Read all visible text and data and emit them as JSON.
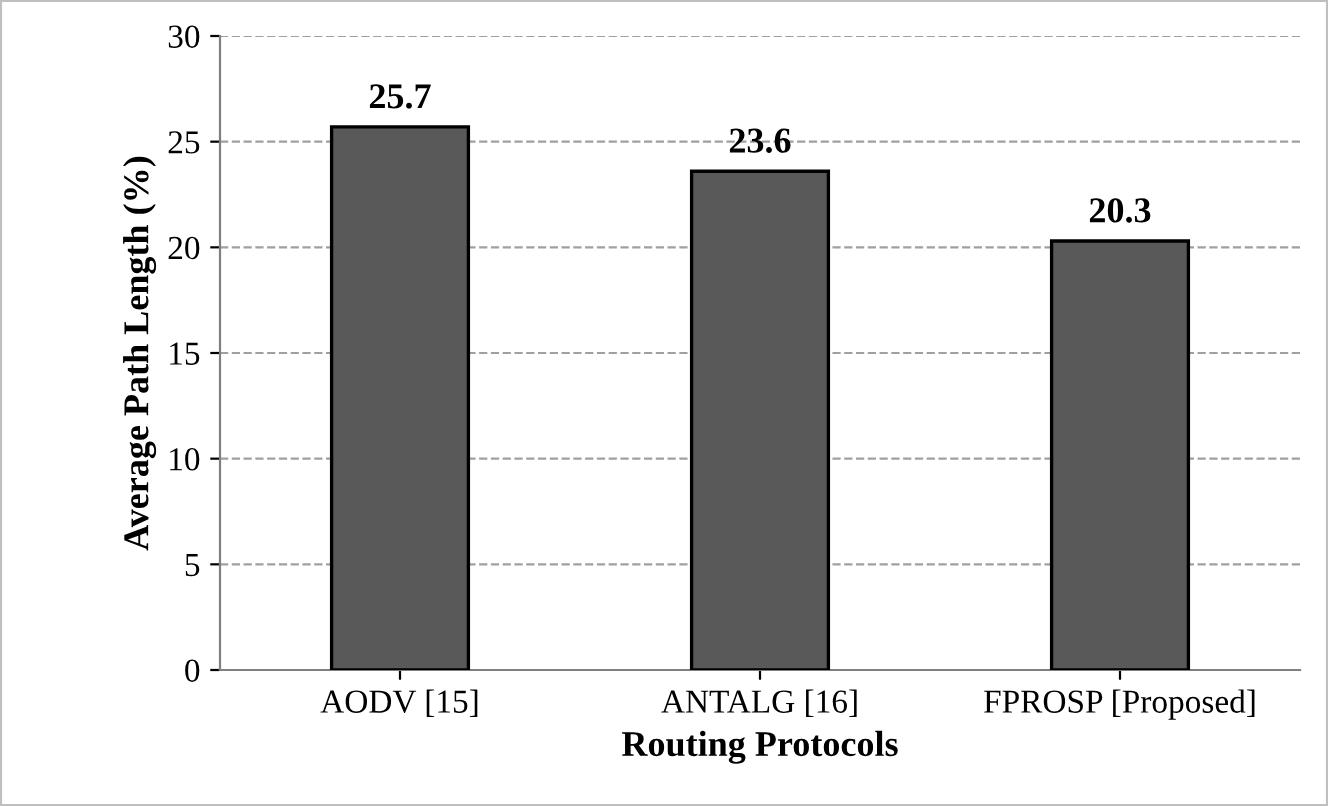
{
  "chart_data": {
    "type": "bar",
    "xlabel": "Routing Protocols",
    "ylabel": "Average Path Length (%)",
    "categories": [
      "AODV [15]",
      "ANTALG [16]",
      "FPROSP [Proposed]"
    ],
    "values": [
      25.7,
      23.6,
      20.3
    ],
    "color": "#595959",
    "ylim": [
      0,
      30
    ],
    "yticks": [
      0,
      5,
      10,
      15,
      20,
      25,
      30
    ],
    "grid": "y",
    "data_labels": true
  }
}
